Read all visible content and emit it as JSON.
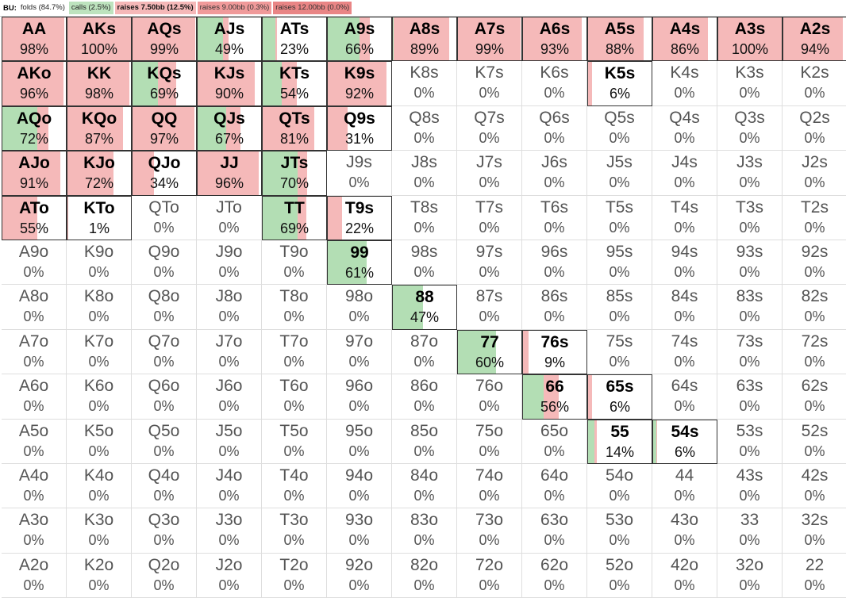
{
  "legend": {
    "position": "BU:",
    "items": [
      {
        "label": "folds (84.7%)",
        "cls": "folds"
      },
      {
        "label": "calls (2.5%)",
        "cls": "calls"
      },
      {
        "label": "raises 7.50bb (12.5%)",
        "cls": "r1"
      },
      {
        "label": "raises 9.00bb (0.3%)",
        "cls": "r2"
      },
      {
        "label": "raises 12.00bb (0.0%)",
        "cls": "r3"
      }
    ]
  },
  "colors": {
    "call": "#b3deb4",
    "raise": "#f5b9b9",
    "raise_alt": "#f0a3a3",
    "empty": "#ffffff"
  },
  "grid": [
    [
      [
        "AA",
        "98%",
        0,
        98
      ],
      [
        "AKs",
        "100%",
        0,
        100
      ],
      [
        "AQs",
        "99%",
        0,
        99
      ],
      [
        "AJs",
        "49%",
        40,
        9
      ],
      [
        "ATs",
        "23%",
        20,
        3
      ],
      [
        "A9s",
        "66%",
        50,
        16
      ],
      [
        "A8s",
        "89%",
        1,
        88
      ],
      [
        "A7s",
        "99%",
        0,
        99
      ],
      [
        "A6s",
        "93%",
        0,
        93
      ],
      [
        "A5s",
        "88%",
        0,
        88
      ],
      [
        "A4s",
        "86%",
        0,
        86
      ],
      [
        "A3s",
        "100%",
        0,
        100
      ],
      [
        "A2s",
        "94%",
        0,
        94
      ]
    ],
    [
      [
        "AKo",
        "96%",
        0,
        96
      ],
      [
        "KK",
        "98%",
        0,
        98
      ],
      [
        "KQs",
        "69%",
        40,
        29
      ],
      [
        "KJs",
        "90%",
        0,
        90
      ],
      [
        "KTs",
        "54%",
        30,
        24
      ],
      [
        "K9s",
        "92%",
        0,
        92
      ],
      [
        "K8s",
        "0%",
        0,
        0
      ],
      [
        "K7s",
        "0%",
        0,
        0
      ],
      [
        "K6s",
        "0%",
        0,
        0
      ],
      [
        "K5s",
        "6%",
        0,
        6
      ],
      [
        "K4s",
        "0%",
        0,
        0
      ],
      [
        "K3s",
        "0%",
        0,
        0
      ],
      [
        "K2s",
        "0%",
        0,
        0
      ]
    ],
    [
      [
        "AQo",
        "72%",
        55,
        17
      ],
      [
        "KQo",
        "87%",
        0,
        87
      ],
      [
        "QQ",
        "97%",
        0,
        97
      ],
      [
        "QJs",
        "67%",
        45,
        22
      ],
      [
        "QTs",
        "81%",
        0,
        81
      ],
      [
        "Q9s",
        "31%",
        0,
        31
      ],
      [
        "Q8s",
        "0%",
        0,
        0
      ],
      [
        "Q7s",
        "0%",
        0,
        0
      ],
      [
        "Q6s",
        "0%",
        0,
        0
      ],
      [
        "Q5s",
        "0%",
        0,
        0
      ],
      [
        "Q4s",
        "0%",
        0,
        0
      ],
      [
        "Q3s",
        "0%",
        0,
        0
      ],
      [
        "Q2s",
        "0%",
        0,
        0
      ]
    ],
    [
      [
        "AJo",
        "91%",
        0,
        91
      ],
      [
        "KJo",
        "72%",
        0,
        72
      ],
      [
        "QJo",
        "34%",
        0,
        34
      ],
      [
        "JJ",
        "96%",
        0,
        96
      ],
      [
        "JTs",
        "70%",
        55,
        15
      ],
      [
        "J9s",
        "0%",
        0,
        0
      ],
      [
        "J8s",
        "0%",
        0,
        0
      ],
      [
        "J7s",
        "0%",
        0,
        0
      ],
      [
        "J6s",
        "0%",
        0,
        0
      ],
      [
        "J5s",
        "0%",
        0,
        0
      ],
      [
        "J4s",
        "0%",
        0,
        0
      ],
      [
        "J3s",
        "0%",
        0,
        0
      ],
      [
        "J2s",
        "0%",
        0,
        0
      ]
    ],
    [
      [
        "ATo",
        "55%",
        0,
        55
      ],
      [
        "KTo",
        "1%",
        0,
        1
      ],
      [
        "QTo",
        "0%",
        0,
        0
      ],
      [
        "JTo",
        "0%",
        0,
        0
      ],
      [
        "TT",
        "69%",
        55,
        14
      ],
      [
        "T9s",
        "22%",
        0,
        22
      ],
      [
        "T8s",
        "0%",
        0,
        0
      ],
      [
        "T7s",
        "0%",
        0,
        0
      ],
      [
        "T6s",
        "0%",
        0,
        0
      ],
      [
        "T5s",
        "0%",
        0,
        0
      ],
      [
        "T4s",
        "0%",
        0,
        0
      ],
      [
        "T3s",
        "0%",
        0,
        0
      ],
      [
        "T2s",
        "0%",
        0,
        0
      ]
    ],
    [
      [
        "A9o",
        "0%",
        0,
        0
      ],
      [
        "K9o",
        "0%",
        0,
        0
      ],
      [
        "Q9o",
        "0%",
        0,
        0
      ],
      [
        "J9o",
        "0%",
        0,
        0
      ],
      [
        "T9o",
        "0%",
        0,
        0
      ],
      [
        "99",
        "61%",
        61,
        0
      ],
      [
        "98s",
        "0%",
        0,
        0
      ],
      [
        "97s",
        "0%",
        0,
        0
      ],
      [
        "96s",
        "0%",
        0,
        0
      ],
      [
        "95s",
        "0%",
        0,
        0
      ],
      [
        "94s",
        "0%",
        0,
        0
      ],
      [
        "93s",
        "0%",
        0,
        0
      ],
      [
        "92s",
        "0%",
        0,
        0
      ]
    ],
    [
      [
        "A8o",
        "0%",
        0,
        0
      ],
      [
        "K8o",
        "0%",
        0,
        0
      ],
      [
        "Q8o",
        "0%",
        0,
        0
      ],
      [
        "J8o",
        "0%",
        0,
        0
      ],
      [
        "T8o",
        "0%",
        0,
        0
      ],
      [
        "98o",
        "0%",
        0,
        0
      ],
      [
        "88",
        "47%",
        47,
        0
      ],
      [
        "87s",
        "0%",
        0,
        0
      ],
      [
        "86s",
        "0%",
        0,
        0
      ],
      [
        "85s",
        "0%",
        0,
        0
      ],
      [
        "84s",
        "0%",
        0,
        0
      ],
      [
        "83s",
        "0%",
        0,
        0
      ],
      [
        "82s",
        "0%",
        0,
        0
      ]
    ],
    [
      [
        "A7o",
        "0%",
        0,
        0
      ],
      [
        "K7o",
        "0%",
        0,
        0
      ],
      [
        "Q7o",
        "0%",
        0,
        0
      ],
      [
        "J7o",
        "0%",
        0,
        0
      ],
      [
        "T7o",
        "0%",
        0,
        0
      ],
      [
        "97o",
        "0%",
        0,
        0
      ],
      [
        "87o",
        "0%",
        0,
        0
      ],
      [
        "77",
        "60%",
        60,
        0
      ],
      [
        "76s",
        "9%",
        0,
        9
      ],
      [
        "75s",
        "0%",
        0,
        0
      ],
      [
        "74s",
        "0%",
        0,
        0
      ],
      [
        "73s",
        "0%",
        0,
        0
      ],
      [
        "72s",
        "0%",
        0,
        0
      ]
    ],
    [
      [
        "A6o",
        "0%",
        0,
        0
      ],
      [
        "K6o",
        "0%",
        0,
        0
      ],
      [
        "Q6o",
        "0%",
        0,
        0
      ],
      [
        "J6o",
        "0%",
        0,
        0
      ],
      [
        "T6o",
        "0%",
        0,
        0
      ],
      [
        "96o",
        "0%",
        0,
        0
      ],
      [
        "86o",
        "0%",
        0,
        0
      ],
      [
        "76o",
        "0%",
        0,
        0
      ],
      [
        "66",
        "56%",
        32,
        24
      ],
      [
        "65s",
        "6%",
        0,
        6
      ],
      [
        "64s",
        "0%",
        0,
        0
      ],
      [
        "63s",
        "0%",
        0,
        0
      ],
      [
        "62s",
        "0%",
        0,
        0
      ]
    ],
    [
      [
        "A5o",
        "0%",
        0,
        0
      ],
      [
        "K5o",
        "0%",
        0,
        0
      ],
      [
        "Q5o",
        "0%",
        0,
        0
      ],
      [
        "J5o",
        "0%",
        0,
        0
      ],
      [
        "T5o",
        "0%",
        0,
        0
      ],
      [
        "95o",
        "0%",
        0,
        0
      ],
      [
        "85o",
        "0%",
        0,
        0
      ],
      [
        "75o",
        "0%",
        0,
        0
      ],
      [
        "65o",
        "0%",
        0,
        0
      ],
      [
        "55",
        "14%",
        10,
        4
      ],
      [
        "54s",
        "6%",
        5,
        1
      ],
      [
        "53s",
        "0%",
        0,
        0
      ],
      [
        "52s",
        "0%",
        0,
        0
      ]
    ],
    [
      [
        "A4o",
        "0%",
        0,
        0
      ],
      [
        "K4o",
        "0%",
        0,
        0
      ],
      [
        "Q4o",
        "0%",
        0,
        0
      ],
      [
        "J4o",
        "0%",
        0,
        0
      ],
      [
        "T4o",
        "0%",
        0,
        0
      ],
      [
        "94o",
        "0%",
        0,
        0
      ],
      [
        "84o",
        "0%",
        0,
        0
      ],
      [
        "74o",
        "0%",
        0,
        0
      ],
      [
        "64o",
        "0%",
        0,
        0
      ],
      [
        "54o",
        "0%",
        0,
        0
      ],
      [
        "44",
        "0%",
        0,
        0
      ],
      [
        "43s",
        "0%",
        0,
        0
      ],
      [
        "42s",
        "0%",
        0,
        0
      ]
    ],
    [
      [
        "A3o",
        "0%",
        0,
        0
      ],
      [
        "K3o",
        "0%",
        0,
        0
      ],
      [
        "Q3o",
        "0%",
        0,
        0
      ],
      [
        "J3o",
        "0%",
        0,
        0
      ],
      [
        "T3o",
        "0%",
        0,
        0
      ],
      [
        "93o",
        "0%",
        0,
        0
      ],
      [
        "83o",
        "0%",
        0,
        0
      ],
      [
        "73o",
        "0%",
        0,
        0
      ],
      [
        "63o",
        "0%",
        0,
        0
      ],
      [
        "53o",
        "0%",
        0,
        0
      ],
      [
        "43o",
        "0%",
        0,
        0
      ],
      [
        "33",
        "0%",
        0,
        0
      ],
      [
        "32s",
        "0%",
        0,
        0
      ]
    ],
    [
      [
        "A2o",
        "0%",
        0,
        0
      ],
      [
        "K2o",
        "0%",
        0,
        0
      ],
      [
        "Q2o",
        "0%",
        0,
        0
      ],
      [
        "J2o",
        "0%",
        0,
        0
      ],
      [
        "T2o",
        "0%",
        0,
        0
      ],
      [
        "92o",
        "0%",
        0,
        0
      ],
      [
        "82o",
        "0%",
        0,
        0
      ],
      [
        "72o",
        "0%",
        0,
        0
      ],
      [
        "62o",
        "0%",
        0,
        0
      ],
      [
        "52o",
        "0%",
        0,
        0
      ],
      [
        "42o",
        "0%",
        0,
        0
      ],
      [
        "32o",
        "0%",
        0,
        0
      ],
      [
        "22",
        "0%",
        0,
        0
      ]
    ]
  ]
}
